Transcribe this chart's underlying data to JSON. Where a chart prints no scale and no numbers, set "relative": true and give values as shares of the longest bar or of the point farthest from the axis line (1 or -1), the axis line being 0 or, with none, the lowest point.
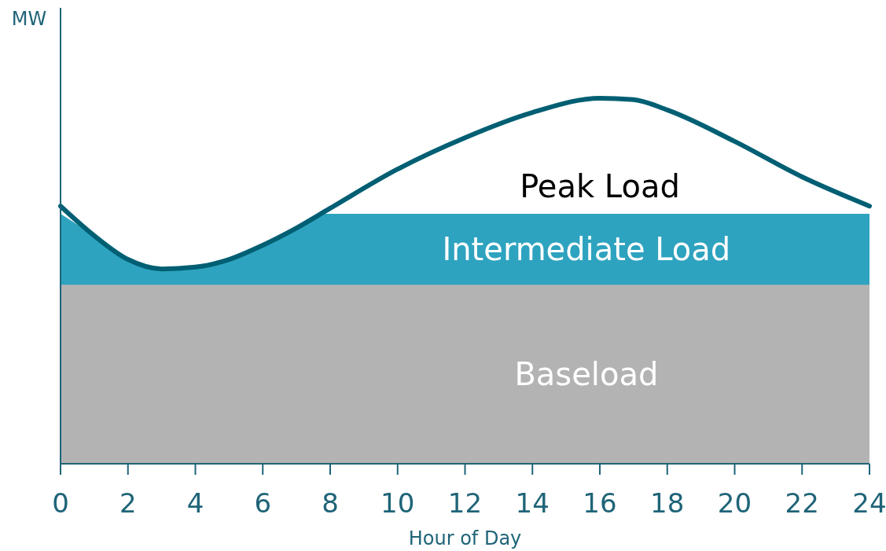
{
  "chart_data": {
    "type": "area",
    "relative": true,
    "xlabel": "Hour of Day",
    "ylabel": "MW",
    "xlim": [
      0,
      24
    ],
    "xticks": [
      0,
      2,
      4,
      6,
      8,
      10,
      12,
      14,
      16,
      18,
      20,
      22,
      24
    ],
    "annotations": [
      "Peak Load"
    ],
    "series": [
      {
        "name": "Intermediate Load",
        "color": "#2ea3bf",
        "x": [
          0,
          1,
          2,
          3,
          4,
          5,
          6,
          7,
          7.7,
          8,
          24
        ],
        "values": [
          0.684,
          0.624,
          0.559,
          0.533,
          0.538,
          0.559,
          0.598,
          0.645,
          0.684,
          0.684,
          0.684
        ]
      },
      {
        "name": "Baseload",
        "color": "#b3b3b3",
        "x": [
          0,
          24
        ],
        "values": [
          0.49,
          0.49
        ]
      },
      {
        "type": "line",
        "color": "#005f73",
        "x": [
          0,
          1,
          2,
          3,
          4,
          5,
          6,
          7,
          8,
          10,
          12,
          14,
          16,
          17,
          18,
          20,
          22,
          24
        ],
        "values": [
          0.705,
          0.624,
          0.559,
          0.533,
          0.538,
          0.559,
          0.598,
          0.645,
          0.699,
          0.806,
          0.892,
          0.961,
          1,
          0.996,
          0.968,
          0.882,
          0.785,
          0.705
        ]
      }
    ]
  }
}
